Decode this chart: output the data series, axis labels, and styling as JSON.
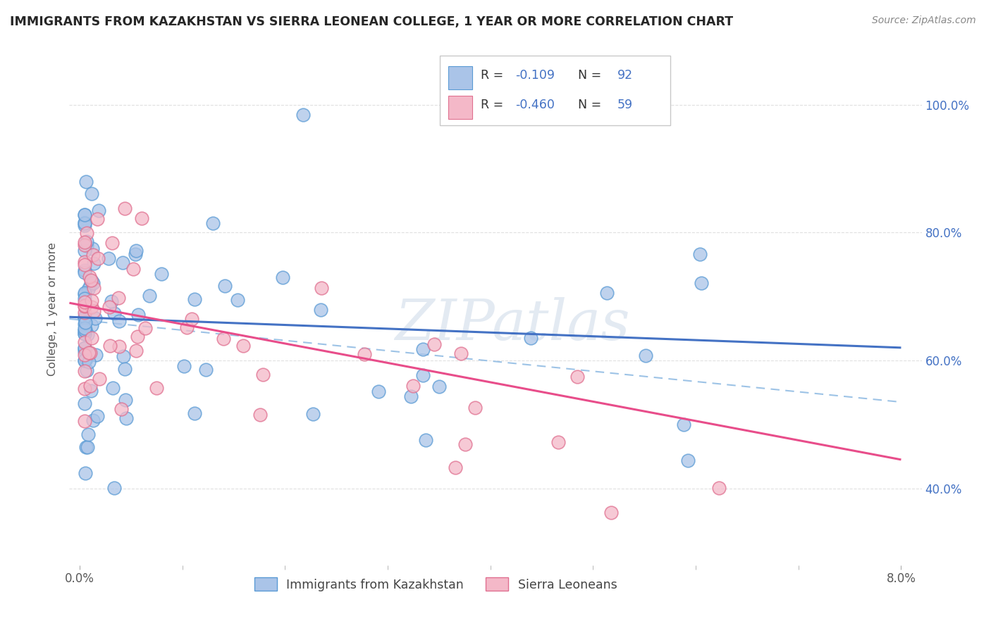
{
  "title": "IMMIGRANTS FROM KAZAKHSTAN VS SIERRA LEONEAN COLLEGE, 1 YEAR OR MORE CORRELATION CHART",
  "source_text": "Source: ZipAtlas.com",
  "ylabel": "College, 1 year or more",
  "xlim": [
    -0.001,
    0.082
  ],
  "ylim": [
    0.28,
    1.08
  ],
  "yticks": [
    0.4,
    0.6,
    0.8,
    1.0
  ],
  "ytick_labels": [
    "40.0%",
    "60.0%",
    "80.0%",
    "100.0%"
  ],
  "xtick_vals": [
    0.0,
    0.08
  ],
  "xtick_labels": [
    "0.0%",
    "8.0%"
  ],
  "watermark": "ZIPatlas",
  "bottom_legend": [
    "Immigrants from Kazakhstan",
    "Sierra Leoneans"
  ],
  "scatter_kazakhstan_color": "#aac4e8",
  "scatter_kazakhstan_edge": "#5b9bd5",
  "scatter_sierra_color": "#f4b8c8",
  "scatter_sierra_edge": "#e07090",
  "line_kaz_color": "#4472c4",
  "line_sl_color": "#e84d8a",
  "ref_line_color": "#9dc3e6",
  "ref_line_style": "--",
  "background_color": "#ffffff",
  "grid_color": "#d9d9d9",
  "title_color": "#262626",
  "title_fontsize": 12.5,
  "axis_label_color": "#595959",
  "right_tick_color": "#4472c4",
  "R_kaz": "-0.109",
  "N_kaz": "92",
  "R_sl": "-0.460",
  "N_sl": "59",
  "kaz_line_y0": 0.668,
  "kaz_line_y1": 0.62,
  "sl_line_y0": 0.69,
  "sl_line_y1": 0.445,
  "ref_line_y0": 0.665,
  "ref_line_y1": 0.535
}
